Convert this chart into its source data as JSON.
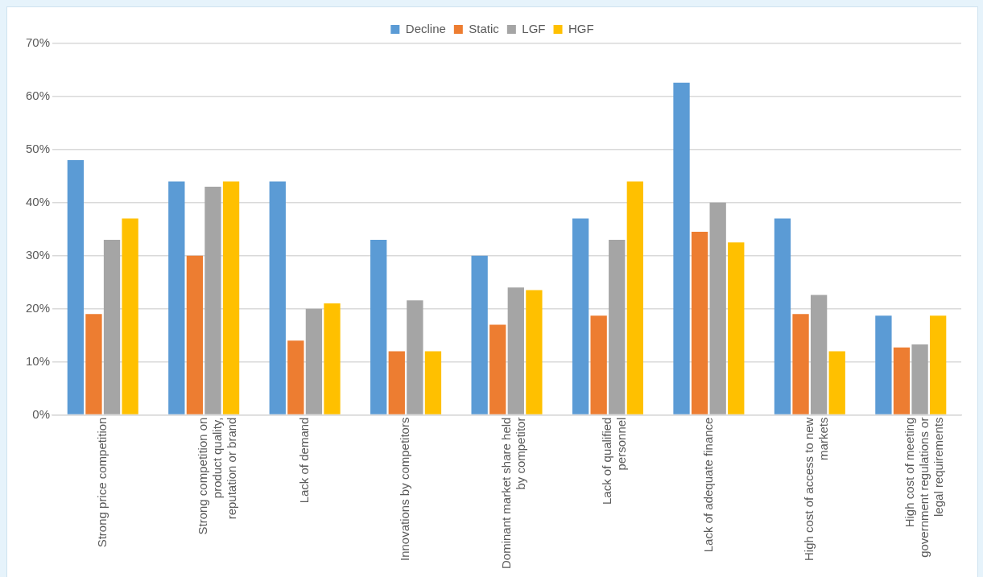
{
  "chart_data": {
    "type": "bar",
    "categories": [
      "Strong price competition",
      "Strong competition on product quality, reputation or brand",
      "Lack of demand",
      "Innovations by competitors",
      "Dominant market share held by competitor",
      "Lack of qualified personnel",
      "Lack of adequate finance",
      "High cost of access to new markets",
      "High cost of meeting government regulations or legal requirements"
    ],
    "series": [
      {
        "name": "Decline",
        "color": "#5b9bd5",
        "values": [
          48,
          44,
          44,
          33,
          30,
          37,
          62.6,
          37,
          18.7
        ]
      },
      {
        "name": "Static",
        "color": "#ed7d31",
        "values": [
          19,
          30,
          14,
          12,
          17,
          18.7,
          34.5,
          19,
          12.7
        ]
      },
      {
        "name": "LGF",
        "color": "#a5a5a5",
        "values": [
          33,
          43,
          20,
          21.6,
          24,
          33,
          40,
          22.6,
          13.3
        ]
      },
      {
        "name": "HGF",
        "color": "#ffc000",
        "values": [
          37,
          44,
          21,
          12,
          23.5,
          44,
          32.5,
          12,
          18.7
        ]
      }
    ],
    "ylim": [
      0,
      70
    ],
    "yticks": [
      {
        "value": 0,
        "label": "0%"
      },
      {
        "value": 10,
        "label": "10%"
      },
      {
        "value": 20,
        "label": "20%"
      },
      {
        "value": 30,
        "label": "30%"
      },
      {
        "value": 40,
        "label": "40%"
      },
      {
        "value": 50,
        "label": "50%"
      },
      {
        "value": 60,
        "label": "60%"
      },
      {
        "value": 70,
        "label": "70%"
      }
    ],
    "grid": "y",
    "legend": "top"
  }
}
